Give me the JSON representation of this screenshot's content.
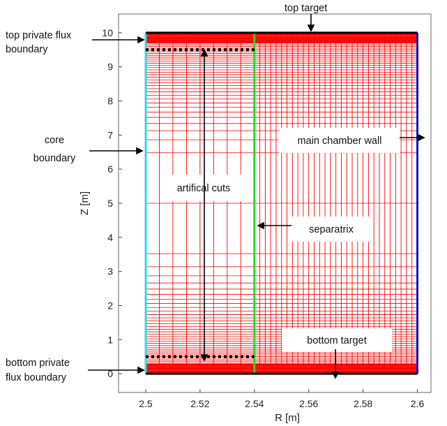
{
  "chart_data": {
    "type": "diagram",
    "xlabel": "R [m]",
    "ylabel": "Z [m]",
    "xlim": [
      2.49,
      2.605
    ],
    "ylim": [
      -0.55,
      10.55
    ],
    "xticks": [
      "2.5",
      "2.52",
      "2.54",
      "2.56",
      "2.58",
      "2.6"
    ],
    "xtick_values": [
      2.5,
      2.52,
      2.54,
      2.56,
      2.58,
      2.6
    ],
    "yticks": [
      "0",
      "1",
      "2",
      "3",
      "4",
      "5",
      "6",
      "7",
      "8",
      "9",
      "10"
    ],
    "ytick_values": [
      0,
      1,
      2,
      3,
      4,
      5,
      6,
      7,
      8,
      9,
      10
    ],
    "domain": {
      "r_min": 2.5,
      "r_max": 2.6,
      "z_min": 0,
      "z_max": 10
    },
    "separatrix_r": 2.54,
    "cut_z": [
      0.5,
      9.5
    ],
    "colors": {
      "grid": "#ff0000",
      "core_boundary": "#33dddd",
      "separatrix": "#22dd22",
      "main_chamber_wall": "#1111cc",
      "targets": "#000000",
      "cuts": "#000000"
    },
    "annotations": {
      "top_target": "top target",
      "top_pfb_line1": "top private flux",
      "top_pfb_line2": "boundary",
      "core_line1": "core",
      "core_line2": "boundary",
      "artificial_cuts": "artifical cuts",
      "main_chamber_wall": "main chamber wall",
      "separatrix": "separatrix",
      "bottom_target": "bottom target",
      "bottom_pfb_line1": "bottom private",
      "bottom_pfb_line2": "flux boundary"
    }
  }
}
